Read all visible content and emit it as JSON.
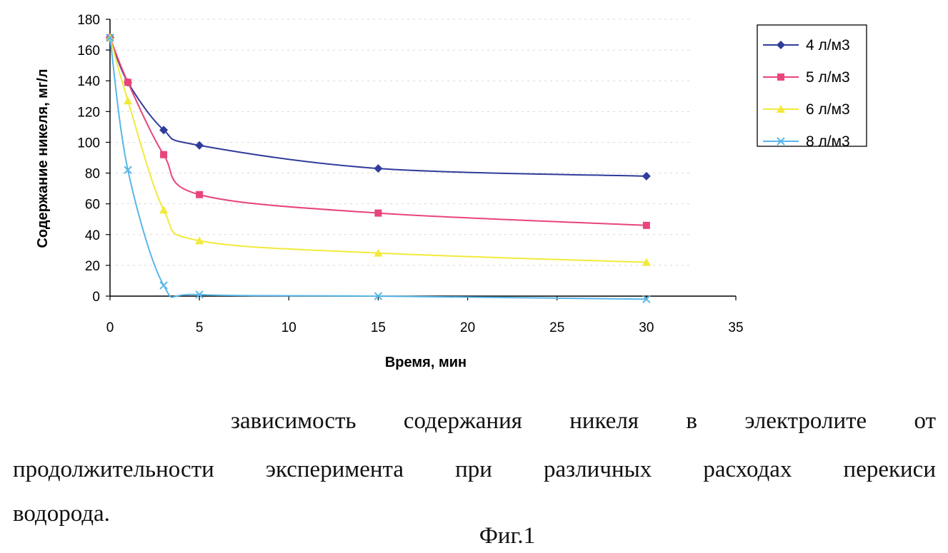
{
  "chart_data": {
    "type": "line",
    "xlabel": "Время, мин",
    "ylabel": "Содержание никеля, мг/л",
    "xlim": [
      0,
      35
    ],
    "ylim": [
      0,
      180
    ],
    "xticks": [
      0,
      5,
      10,
      15,
      20,
      25,
      30,
      35
    ],
    "yticks": [
      0,
      20,
      40,
      60,
      80,
      100,
      120,
      140,
      160,
      180
    ],
    "grid": "horizontal dashed",
    "legend_position": "top-right",
    "x": [
      0,
      1,
      3,
      5,
      15,
      30
    ],
    "series": [
      {
        "name": "4 л/м3",
        "color": "#2f3c9a",
        "marker": "diamond",
        "values": [
          168,
          139,
          108,
          98,
          83,
          78
        ]
      },
      {
        "name": "5 л/м3",
        "color": "#e8457a",
        "marker": "square",
        "values": [
          168,
          139,
          92,
          66,
          54,
          46
        ]
      },
      {
        "name": "6 л/м3",
        "color": "#f2ea3a",
        "marker": "triangle",
        "values": [
          168,
          127,
          56,
          36,
          28,
          22
        ]
      },
      {
        "name": "8 л/м3",
        "color": "#58b7e8",
        "marker": "x",
        "values": [
          168,
          82,
          7,
          1,
          0,
          -2
        ]
      }
    ]
  },
  "caption": {
    "line1": "зависимость содержания никеля в электролите от",
    "line2": "продолжительности эксперимента при различных расходах перекиси",
    "line3": "водорода.",
    "figure_label": "Фиг.1"
  }
}
